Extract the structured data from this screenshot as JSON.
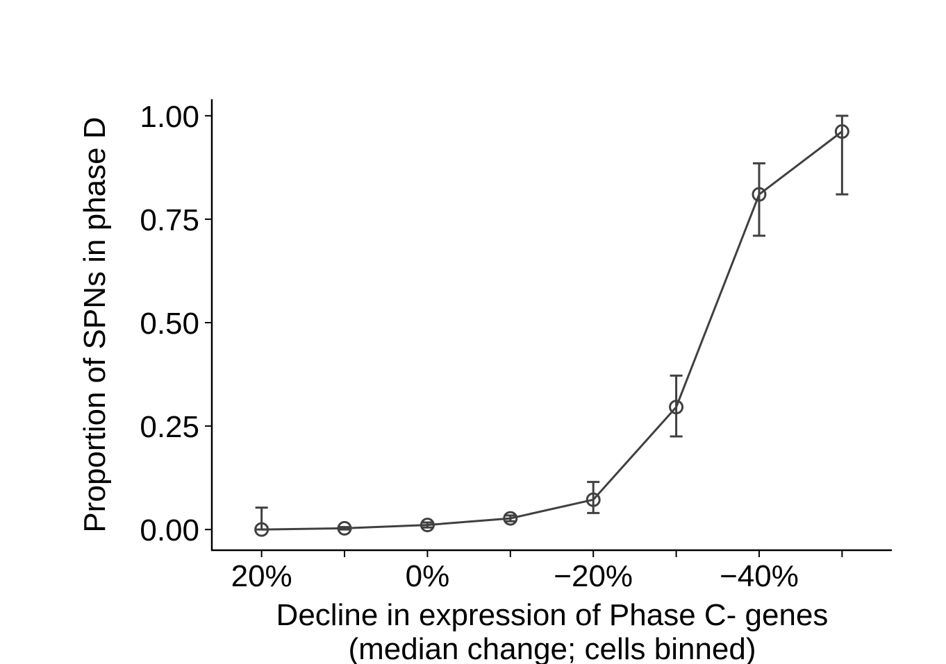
{
  "chart_data": {
    "type": "line",
    "x_tick_labels": [
      "20%",
      "0%",
      "−20%",
      "−40%"
    ],
    "x_tick_values": [
      20,
      0,
      -20,
      -40
    ],
    "y_tick_labels": [
      "0.00",
      "0.25",
      "0.50",
      "0.75",
      "1.00"
    ],
    "y_tick_values": [
      0,
      0.25,
      0.5,
      0.75,
      1.0
    ],
    "xlabel_line1": "Decline in expression of Phase C- genes",
    "xlabel_line2": "(median change; cells binned)",
    "ylabel": "Proportion of SPNs in phase D",
    "xlim": [
      26,
      -56
    ],
    "ylim": [
      -0.05,
      1.04
    ],
    "x_reversed": true,
    "series": [
      {
        "x": [
          20,
          10,
          0,
          -10,
          -20,
          -30,
          -40,
          -50
        ],
        "y": [
          0.0,
          0.003,
          0.011,
          0.027,
          0.072,
          0.296,
          0.81,
          0.962
        ],
        "err_low": [
          0.0,
          0.0,
          0.005,
          0.02,
          0.04,
          0.225,
          0.71,
          0.81
        ],
        "err_high": [
          0.053,
          0.006,
          0.017,
          0.034,
          0.115,
          0.372,
          0.885,
          1.0
        ]
      }
    ],
    "color": "#404040",
    "grid": false,
    "legend": "none"
  }
}
